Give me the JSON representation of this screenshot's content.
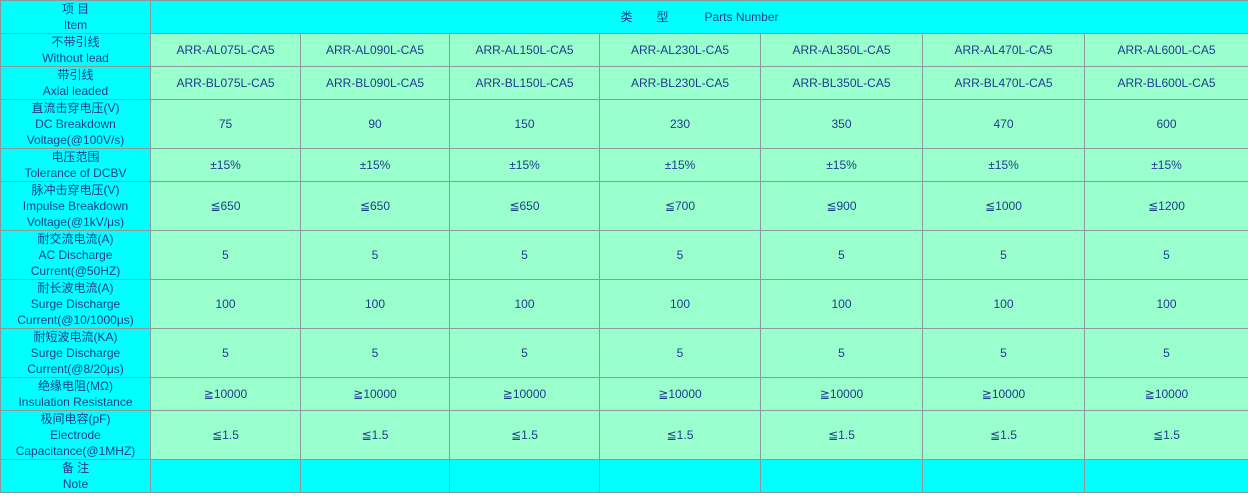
{
  "header": {
    "item": [
      "项 目",
      "Item"
    ],
    "parts": "类　　型　　　Parts Number"
  },
  "rows": [
    {
      "label": [
        "不带引线",
        "Without lead"
      ],
      "values": [
        "ARR-AL075L-CA5",
        "ARR-AL090L-CA5",
        "ARR-AL150L-CA5",
        "ARR-AL230L-CA5",
        "ARR-AL350L-CA5",
        "ARR-AL470L-CA5",
        "ARR-AL600L-CA5"
      ]
    },
    {
      "label": [
        "带引线",
        "Axial leaded"
      ],
      "values": [
        "ARR-BL075L-CA5",
        "ARR-BL090L-CA5",
        "ARR-BL150L-CA5",
        "ARR-BL230L-CA5",
        "ARR-BL350L-CA5",
        "ARR-BL470L-CA5",
        "ARR-BL600L-CA5"
      ]
    },
    {
      "label": [
        "直流击穿电压(V)",
        "DC Breakdown",
        "Voltage(@100V/s)"
      ],
      "values": [
        75,
        90,
        150,
        230,
        350,
        470,
        600
      ]
    },
    {
      "label": [
        "电压范围",
        "Tolerance of DCBV"
      ],
      "values": [
        "±15%",
        "±15%",
        "±15%",
        "±15%",
        "±15%",
        "±15%",
        "±15%"
      ]
    },
    {
      "label": [
        "脉冲击穿电压(V)",
        "Impulse Breakdown",
        "Voltage(@1kV/μs)"
      ],
      "values": [
        "≦650",
        "≦650",
        "≦650",
        "≦700",
        "≦900",
        "≦1000",
        "≦1200"
      ]
    },
    {
      "label": [
        "耐交流电流(A)",
        "AC Discharge",
        "Current(@50HZ)"
      ],
      "values": [
        5,
        5,
        5,
        5,
        5,
        5,
        5
      ]
    },
    {
      "label": [
        "耐长波电流(A)",
        "Surge Discharge",
        "Current(@10/1000μs)"
      ],
      "values": [
        100,
        100,
        100,
        100,
        100,
        100,
        100
      ]
    },
    {
      "label": [
        "耐短波电流(KA)",
        "Surge Discharge",
        "Current(@8/20μs)"
      ],
      "values": [
        5,
        5,
        5,
        5,
        5,
        5,
        5
      ]
    },
    {
      "label": [
        "绝缘电阻(MΩ)",
        "Insulation Resistance"
      ],
      "values": [
        "≧10000",
        "≧10000",
        "≧10000",
        "≧10000",
        "≧10000",
        "≧10000",
        "≧10000"
      ]
    },
    {
      "label": [
        "极间电容(pF)",
        "Electrode",
        "Capacitance(@1MHZ)"
      ],
      "values": [
        "≦1.5",
        "≦1.5",
        "≦1.5",
        "≦1.5",
        "≦1.5",
        "≦1.5",
        "≦1.5"
      ]
    },
    {
      "label": [
        "备 注",
        "Note"
      ]
    }
  ]
}
